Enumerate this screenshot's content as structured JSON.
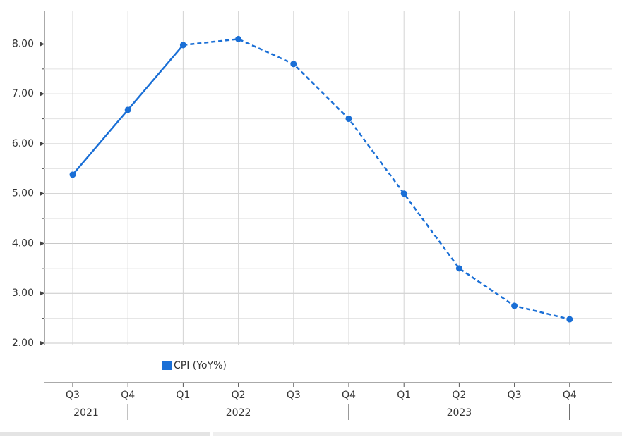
{
  "chart_data": {
    "type": "line",
    "categories": [
      "Q3",
      "Q4",
      "Q1",
      "Q2",
      "Q3",
      "Q4",
      "Q1",
      "Q2",
      "Q3",
      "Q4"
    ],
    "x_groups": [
      {
        "label": "2021",
        "count": 2
      },
      {
        "label": "2022",
        "count": 4
      },
      {
        "label": "2023",
        "count": 4
      }
    ],
    "series": [
      {
        "name": "CPI (YoY%)",
        "color": "#1a6fd6",
        "values": [
          5.38,
          6.68,
          7.98,
          null,
          null,
          null,
          null,
          null,
          null,
          null
        ]
      },
      {
        "color": "#1a6fd6",
        "dashed": true,
        "values": [
          null,
          null,
          7.98,
          8.1,
          7.6,
          6.5,
          5.0,
          3.5,
          2.75,
          2.48
        ]
      }
    ],
    "ylim": [
      2,
      8.6
    ],
    "yticks": [
      {
        "value": 2,
        "label": "2.00"
      },
      {
        "value": 3,
        "label": "3.00"
      },
      {
        "value": 4,
        "label": "4.00"
      },
      {
        "value": 5,
        "label": "5.00"
      },
      {
        "value": 6,
        "label": "6.00"
      },
      {
        "value": 7,
        "label": "7.00"
      },
      {
        "value": 8,
        "label": "8.00"
      }
    ],
    "grid": true
  }
}
